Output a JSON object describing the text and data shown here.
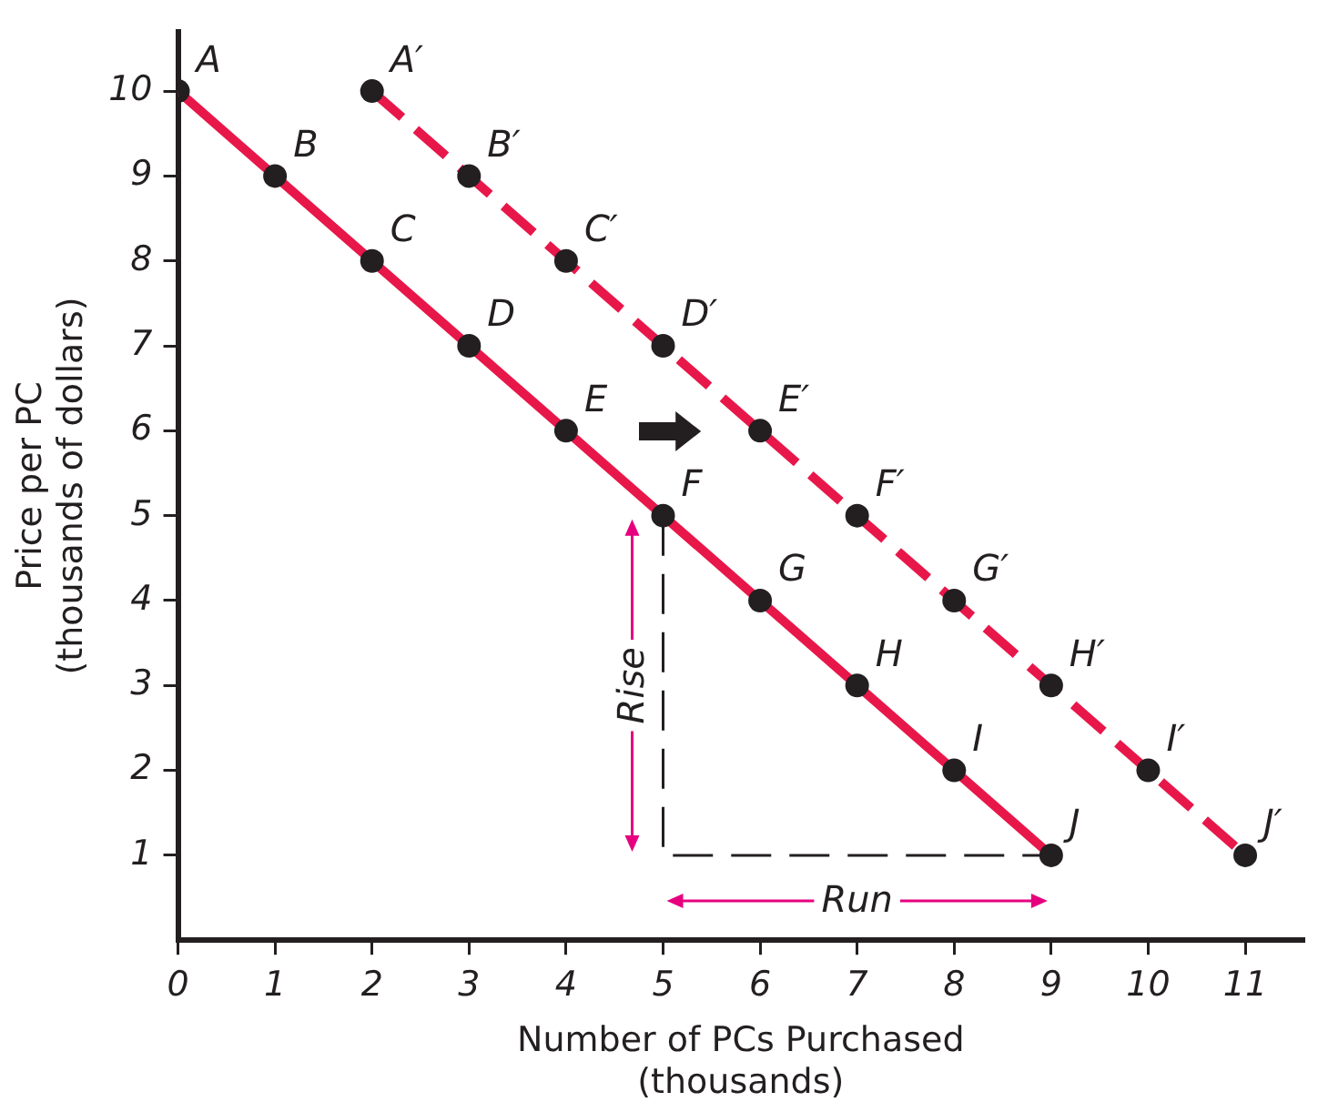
{
  "chart_data": {
    "type": "line",
    "xlabel": "Number of PCs Purchased\n(thousands)",
    "ylabel": "Price per PC\n(thousands of dollars)",
    "xlim": [
      0,
      11.6
    ],
    "ylim": [
      0,
      10.7
    ],
    "xticks": [
      0,
      1,
      2,
      3,
      4,
      5,
      6,
      7,
      8,
      9,
      10,
      11
    ],
    "yticks": [
      1,
      2,
      3,
      4,
      5,
      6,
      7,
      8,
      9,
      10
    ],
    "grid": false,
    "legend": false,
    "line_style": "solid",
    "series": [
      {
        "color": "#e8174a",
        "x": [
          0,
          1,
          2,
          3,
          4,
          5,
          6,
          7,
          8,
          9
        ],
        "values": [
          10,
          9,
          8,
          7,
          6,
          5,
          4,
          3,
          2,
          1
        ],
        "marker": "circle",
        "value_labels": [
          "A",
          "B",
          "C",
          "D",
          "E",
          "F",
          "G",
          "H",
          "I",
          "J"
        ]
      },
      {
        "color": "#e8174a",
        "line_style": "dashed",
        "x": [
          2,
          3,
          4,
          5,
          6,
          7,
          8,
          9,
          10,
          11
        ],
        "values": [
          10,
          9,
          8,
          7,
          6,
          5,
          4,
          3,
          2,
          1
        ],
        "marker": "circle",
        "value_labels": [
          "A′",
          "B′",
          "C′",
          "D′",
          "E′",
          "F′",
          "G′",
          "H′",
          "I′",
          "J′"
        ]
      },
      {
        "color": "#231f20",
        "line_style": "dashed",
        "x": [
          5,
          5,
          9
        ],
        "values": [
          5,
          1,
          1
        ]
      }
    ],
    "annotations": [
      {
        "text": "Rise",
        "x": 5,
        "y": 3
      },
      {
        "text": "Run",
        "x": 7,
        "y": 1
      }
    ]
  }
}
